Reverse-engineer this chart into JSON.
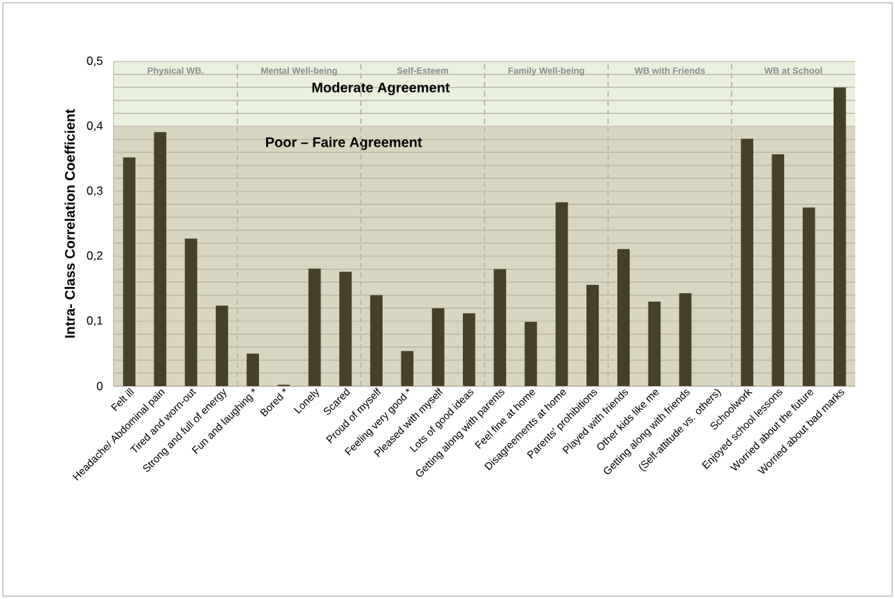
{
  "chart_data": {
    "type": "bar",
    "ylabel": "Intra- Class Correlation Coefficient",
    "categories": [
      "Felt ill",
      "Headache/ Abdominal pain",
      "Tired and worn-out",
      "Strong and full of energy",
      "Fun and laughing *",
      "Bored *",
      "Lonely",
      "Scared",
      "Proud of myself",
      "Feeling very good *",
      "Pleased with myself",
      "Lots of good ideas",
      "Getting along with parents",
      "Feel fine at home",
      "Disagreements at home",
      "Parents' prohibitions",
      "Played with friends",
      "Other kids like me",
      "Getting along with friends",
      "(Self-attitude vs. others)",
      "Schoolwork",
      "Enjoyed school lessons",
      "Worried about the future",
      "Worried about bad marks"
    ],
    "values": [
      0.352,
      0.391,
      0.227,
      0.124,
      0.05,
      0.002,
      0.181,
      0.176,
      0.14,
      0.054,
      0.12,
      0.112,
      0.18,
      0.099,
      0.283,
      0.156,
      0.211,
      0.13,
      0.143,
      0,
      0.381,
      0.357,
      0.275,
      0.46
    ],
    "color": "#474029",
    "ylim": [
      0,
      0.5
    ],
    "yticks": [
      0,
      {
        "value": 0.1,
        "label": "0,1"
      },
      {
        "value": 0.2,
        "label": "0,2"
      },
      {
        "value": 0.3,
        "label": "0,3"
      },
      {
        "value": 0.4,
        "label": "0,4"
      },
      {
        "value": 0.5,
        "label": "0,5"
      }
    ],
    "grid": "y",
    "bands": [
      {
        "axis": "y",
        "from": 0,
        "to": 0.4,
        "label": "Poor – Faire Agreement",
        "color": "#d8d5c0"
      },
      {
        "axis": "y",
        "from": 0.4,
        "to": 0.5,
        "label": "Moderate Agreement",
        "color": "#eaf0de"
      }
    ],
    "annotations": [
      "Physical WB.",
      "Mental Well-being",
      "Self-Esteem",
      "Family Well-being",
      "WB with Friends",
      "WB at School"
    ]
  }
}
